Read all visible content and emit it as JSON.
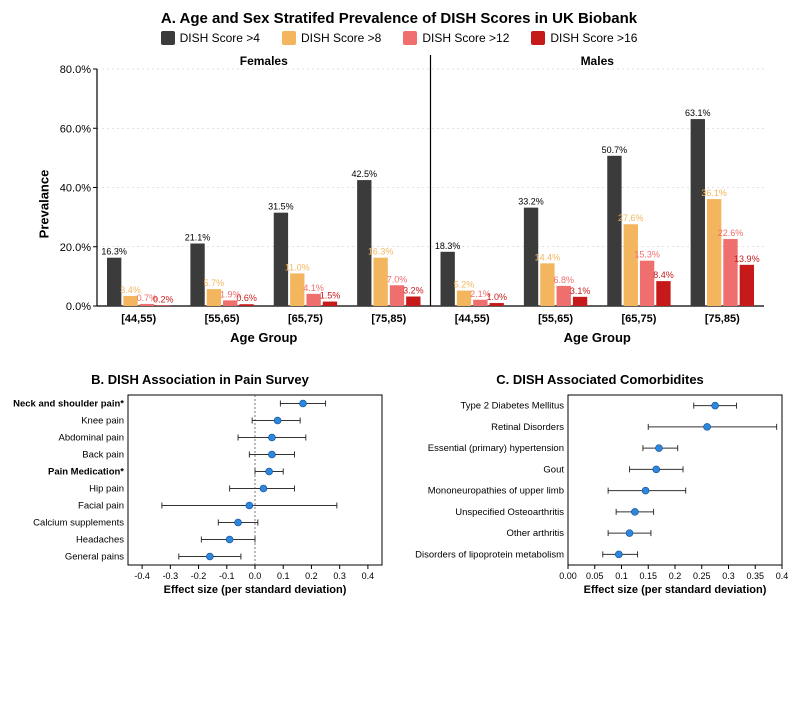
{
  "panelA": {
    "title": "A. Age and Sex Stratifed Prevalence of DISH Scores in UK Biobank",
    "ylabel": "Prevalance",
    "xlabel": "Age Group",
    "ylim": [
      0,
      80
    ],
    "ytick_step": 20,
    "ytick_format_suffix": ".0%",
    "bg": "#ffffff",
    "grid_color": "#888888",
    "series": [
      {
        "name": "DISH Score >4",
        "color": "#3b3b3b"
      },
      {
        "name": "DISH Score >8",
        "color": "#f3b65e"
      },
      {
        "name": "DISH Score >12",
        "color": "#ef6e6e"
      },
      {
        "name": "DISH Score >16",
        "color": "#c61a1a"
      }
    ],
    "panels": [
      {
        "label": "Females",
        "groups": [
          {
            "cat": "[44,55)",
            "vals": [
              16.3,
              3.4,
              0.7,
              0.2
            ]
          },
          {
            "cat": "[55,65)",
            "vals": [
              21.1,
              5.7,
              1.9,
              0.6
            ]
          },
          {
            "cat": "[65,75)",
            "vals": [
              31.5,
              11.0,
              4.1,
              1.5
            ]
          },
          {
            "cat": "[75,85)",
            "vals": [
              42.5,
              16.3,
              7.0,
              3.2
            ]
          }
        ]
      },
      {
        "label": "Males",
        "groups": [
          {
            "cat": "[44,55)",
            "vals": [
              18.3,
              5.2,
              2.1,
              1.0
            ]
          },
          {
            "cat": "[55,65)",
            "vals": [
              33.2,
              14.4,
              6.8,
              3.1
            ]
          },
          {
            "cat": "[65,75)",
            "vals": [
              50.7,
              27.6,
              15.3,
              8.4
            ]
          },
          {
            "cat": "[75,85)",
            "vals": [
              63.1,
              36.1,
              22.6,
              13.9
            ]
          }
        ]
      }
    ]
  },
  "panelB": {
    "title": "B. DISH Association in Pain Survey",
    "xlabel": "Effect size (per standard deviation)",
    "xlim": [
      -0.45,
      0.45
    ],
    "xticks": [
      -0.4,
      -0.3,
      -0.2,
      -0.1,
      0.0,
      0.1,
      0.2,
      0.3,
      0.4
    ],
    "ref_line": 0.0,
    "point_color": "#2e86de",
    "point_radius": 3.5,
    "err_color": "#333333",
    "items": [
      {
        "label": "Neck and shoulder pain*",
        "bold": true,
        "est": 0.17,
        "lo": 0.09,
        "hi": 0.25
      },
      {
        "label": "Knee pain",
        "bold": false,
        "est": 0.08,
        "lo": -0.01,
        "hi": 0.16
      },
      {
        "label": "Abdominal pain",
        "bold": false,
        "est": 0.06,
        "lo": -0.06,
        "hi": 0.18
      },
      {
        "label": "Back pain",
        "bold": false,
        "est": 0.06,
        "lo": -0.02,
        "hi": 0.14
      },
      {
        "label": "Pain Medication*",
        "bold": true,
        "est": 0.05,
        "lo": 0.0,
        "hi": 0.1
      },
      {
        "label": "Hip pain",
        "bold": false,
        "est": 0.03,
        "lo": -0.09,
        "hi": 0.14
      },
      {
        "label": "Facial pain",
        "bold": false,
        "est": -0.02,
        "lo": -0.33,
        "hi": 0.29
      },
      {
        "label": "Calcium supplements",
        "bold": false,
        "est": -0.06,
        "lo": -0.13,
        "hi": 0.01
      },
      {
        "label": "Headaches",
        "bold": false,
        "est": -0.09,
        "lo": -0.19,
        "hi": 0.0
      },
      {
        "label": "General pains",
        "bold": false,
        "est": -0.16,
        "lo": -0.27,
        "hi": -0.05
      }
    ]
  },
  "panelC": {
    "title": "C. DISH Associated Comorbidites",
    "xlabel": "Effect size (per standard deviation)",
    "xlim": [
      0.0,
      0.4
    ],
    "xticks": [
      0.0,
      0.05,
      0.1,
      0.15,
      0.2,
      0.25,
      0.3,
      0.35,
      0.4
    ],
    "point_color": "#2e86de",
    "point_radius": 3.5,
    "err_color": "#333333",
    "items": [
      {
        "label": "Type 2 Diabetes Mellitus",
        "est": 0.275,
        "lo": 0.235,
        "hi": 0.315
      },
      {
        "label": "Retinal Disorders",
        "est": 0.26,
        "lo": 0.15,
        "hi": 0.39
      },
      {
        "label": "Essential (primary) hypertension",
        "est": 0.17,
        "lo": 0.14,
        "hi": 0.205
      },
      {
        "label": "Gout",
        "est": 0.165,
        "lo": 0.115,
        "hi": 0.215
      },
      {
        "label": "Mononeuropathies of upper limb",
        "est": 0.145,
        "lo": 0.075,
        "hi": 0.22
      },
      {
        "label": "Unspecified Osteoarthritis",
        "est": 0.125,
        "lo": 0.09,
        "hi": 0.16
      },
      {
        "label": "Other arthritis",
        "est": 0.115,
        "lo": 0.075,
        "hi": 0.155
      },
      {
        "label": "Disorders of lipoprotein metabolism",
        "est": 0.095,
        "lo": 0.065,
        "hi": 0.13
      }
    ]
  }
}
